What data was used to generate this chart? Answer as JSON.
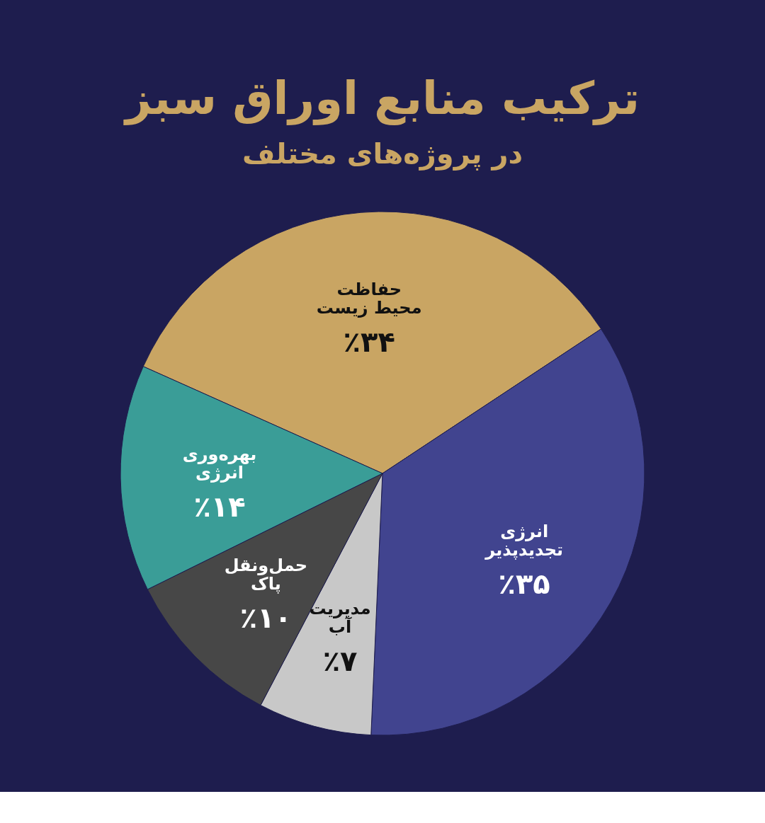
{
  "chart_data": {
    "type": "pie",
    "title": "ترکیب منابع اوراق سبز",
    "subtitle": "در پروژه‌های مختلف",
    "categories": [
      "حفاظت محیط زیست",
      "انرژی تجدیدپذیر",
      "مدیریت آب",
      "حمل‌ونقل پاک",
      "بهره‌وری انرژی"
    ],
    "values": [
      34,
      35,
      7,
      10,
      14
    ],
    "colors": [
      "#c9a563",
      "#41448f",
      "#c8c8c8",
      "#474747",
      "#3a9d97"
    ],
    "value_labels": [
      "٪۳۴",
      "٪۳۵",
      "٪۷",
      "٪۱۰",
      "٪۱۴"
    ],
    "legend": false
  }
}
